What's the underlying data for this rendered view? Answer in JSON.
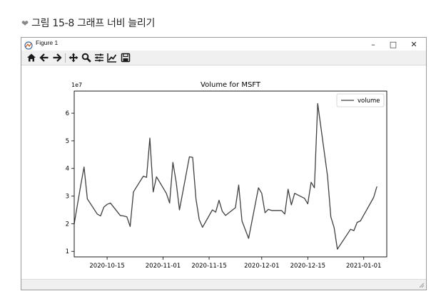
{
  "caption": {
    "marker": "❤",
    "text": "그림 15-8 그래프 너비 늘리기"
  },
  "window": {
    "title": "Figure 1",
    "controls": {
      "minimize": "–",
      "maximize": "□",
      "close": "✕"
    }
  },
  "toolbar": {
    "buttons": [
      "home-icon",
      "back-icon",
      "forward-icon",
      "pan-icon",
      "zoom-icon",
      "subplots-icon",
      "edit-curves-icon",
      "save-icon"
    ]
  },
  "chart_data": {
    "type": "line",
    "title": "Volume for MSFT",
    "offset_label": "1e7",
    "xlabel": "",
    "ylabel": "",
    "ylim": [
      0.8,
      6.8
    ],
    "yticks": [
      1,
      2,
      3,
      4,
      5,
      6
    ],
    "xlim": [
      "2020-10-05",
      "2021-01-08"
    ],
    "xticks": [
      "2020-10-15",
      "2020-11-01",
      "2020-11-15",
      "2020-12-01",
      "2020-12-15",
      "2021-01-01"
    ],
    "legend": "top-right",
    "line_color": "#404040",
    "series": [
      {
        "name": "volume",
        "x": [
          "2020-10-05",
          "2020-10-06",
          "2020-10-07",
          "2020-10-08",
          "2020-10-09",
          "2020-10-12",
          "2020-10-13",
          "2020-10-14",
          "2020-10-15",
          "2020-10-16",
          "2020-10-19",
          "2020-10-20",
          "2020-10-21",
          "2020-10-22",
          "2020-10-23",
          "2020-10-26",
          "2020-10-27",
          "2020-10-28",
          "2020-10-29",
          "2020-10-30",
          "2020-11-02",
          "2020-11-03",
          "2020-11-04",
          "2020-11-05",
          "2020-11-06",
          "2020-11-09",
          "2020-11-10",
          "2020-11-11",
          "2020-11-12",
          "2020-11-13",
          "2020-11-16",
          "2020-11-17",
          "2020-11-18",
          "2020-11-19",
          "2020-11-20",
          "2020-11-23",
          "2020-11-24",
          "2020-11-25",
          "2020-11-27",
          "2020-11-30",
          "2020-12-01",
          "2020-12-02",
          "2020-12-03",
          "2020-12-04",
          "2020-12-07",
          "2020-12-08",
          "2020-12-09",
          "2020-12-10",
          "2020-12-11",
          "2020-12-14",
          "2020-12-15",
          "2020-12-16",
          "2020-12-17",
          "2020-12-18",
          "2020-12-21",
          "2020-12-22",
          "2020-12-23",
          "2020-12-24",
          "2020-12-28",
          "2020-12-29",
          "2020-12-30",
          "2020-12-31",
          "2021-01-04",
          "2021-01-05"
        ],
        "values": [
          2.0,
          2.7,
          3.4,
          4.05,
          2.9,
          2.35,
          2.28,
          2.6,
          2.7,
          2.75,
          2.3,
          2.28,
          2.25,
          1.9,
          3.15,
          3.72,
          3.68,
          5.1,
          3.15,
          3.7,
          3.1,
          2.75,
          4.22,
          3.5,
          2.5,
          4.42,
          4.4,
          2.9,
          2.15,
          1.87,
          2.5,
          2.42,
          2.85,
          2.45,
          2.3,
          2.58,
          3.4,
          2.1,
          1.47,
          3.3,
          3.1,
          2.4,
          2.52,
          2.48,
          2.48,
          2.35,
          3.25,
          2.68,
          3.1,
          2.92,
          2.72,
          3.5,
          3.3,
          6.35,
          3.72,
          2.25,
          1.86,
          1.08,
          1.8,
          1.75,
          2.05,
          2.1,
          2.95,
          3.35
        ]
      }
    ]
  }
}
